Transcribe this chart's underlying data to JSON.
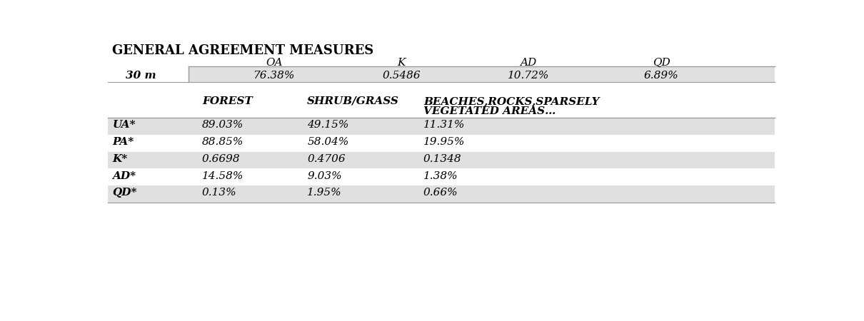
{
  "title": "GENERAL AGREEMENT MEASURES",
  "gen_headers": [
    "OA",
    "K",
    "AD",
    "QD"
  ],
  "gen_row_label": "30 m",
  "gen_row_values": [
    "76.38%",
    "0.5486",
    "10.72%",
    "6.89%"
  ],
  "cls_headers": [
    "FOREST",
    "SHRUB/GRASS",
    "BEACHES,ROCKS,SPARSELY\nVEGETATED AREAS…"
  ],
  "cls_rows": [
    [
      "UA*",
      "89.03%",
      "49.15%",
      "11.31%"
    ],
    [
      "PA*",
      "88.85%",
      "58.04%",
      "19.95%"
    ],
    [
      "K*",
      "0.6698",
      "0.4706",
      "0.1348"
    ],
    [
      "AD*",
      "14.58%",
      "9.03%",
      "1.38%"
    ],
    [
      "QD*",
      "0.13%",
      "1.95%",
      "0.66%"
    ]
  ],
  "bg_light": "#e0e0e0",
  "bg_white": "#ffffff",
  "line_color": "#999999",
  "text_color": "#000000",
  "title_fontsize": 13,
  "header_fontsize": 11,
  "data_fontsize": 11
}
